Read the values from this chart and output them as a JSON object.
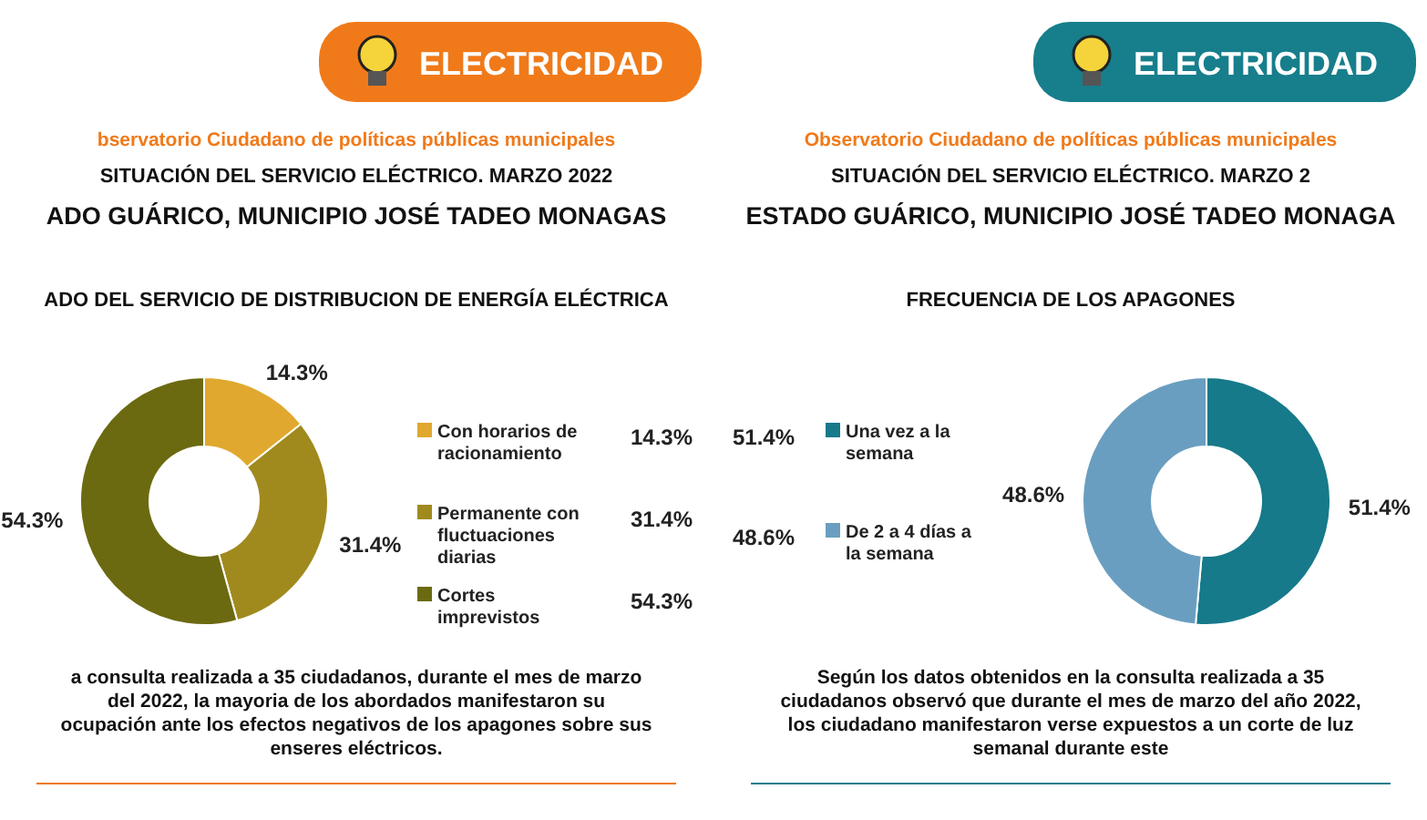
{
  "chart_data": [
    {
      "type": "donut",
      "title": "ADO DEL SERVICIO DE  DISTRIBUCION DE ENERGÍA ELÉCTRICA",
      "categories": [
        "Con horarios de racionamiento",
        "Permanente con fluctuaciones diarias",
        "Cortes imprevistos"
      ],
      "values": [
        14.3,
        31.4,
        54.3
      ],
      "value_labels": [
        "14.3%",
        "31.4%",
        "54.3%"
      ],
      "colors": [
        "#e0a82e",
        "#a08a1e",
        "#6b6a10"
      ],
      "data_labels": true,
      "legend": "right",
      "annotations": [
        "ELECTRICIDAD",
        "bservatorio Ciudadano de políticas públicas municipales",
        "SITUACIÓN DEL SERVICIO ELÉCTRICO. MARZO 2022",
        "ADO GUÁRICO, MUNICIPIO JOSÉ TADEO MONAGAS",
        "a consulta realizada a 35 ciudadanos, durante el mes de marzo del 2022, la mayoria de los abordados manifestaron su ocupación ante los efectos negativos de los apagones sobre sus enseres eléctricos."
      ]
    },
    {
      "type": "donut",
      "title": "FRECUENCIA DE LOS APAGONES",
      "categories": [
        "Una vez a la semana",
        "De 2 a 4 días a la semana"
      ],
      "values": [
        51.4,
        48.6
      ],
      "value_labels": [
        "51.4%",
        "48.6%"
      ],
      "colors": [
        "#167a8a",
        "#6a9ec0"
      ],
      "data_labels": true,
      "legend": "left",
      "annotations": [
        "ELECTRICIDAD",
        "Observatorio Ciudadano de políticas públicas municipales",
        "SITUACIÓN DEL SERVICIO ELÉCTRICO. MARZO 2",
        "ESTADO GUÁRICO, MUNICIPIO JOSÉ TADEO MONAGA",
        "Según los datos obtenidos en la consulta realizada a 35 ciudadanos observó que durante el mes de marzo del año 2022, los ciudadano manifestaron verse expuestos a un corte de luz semanal durante este"
      ]
    }
  ]
}
